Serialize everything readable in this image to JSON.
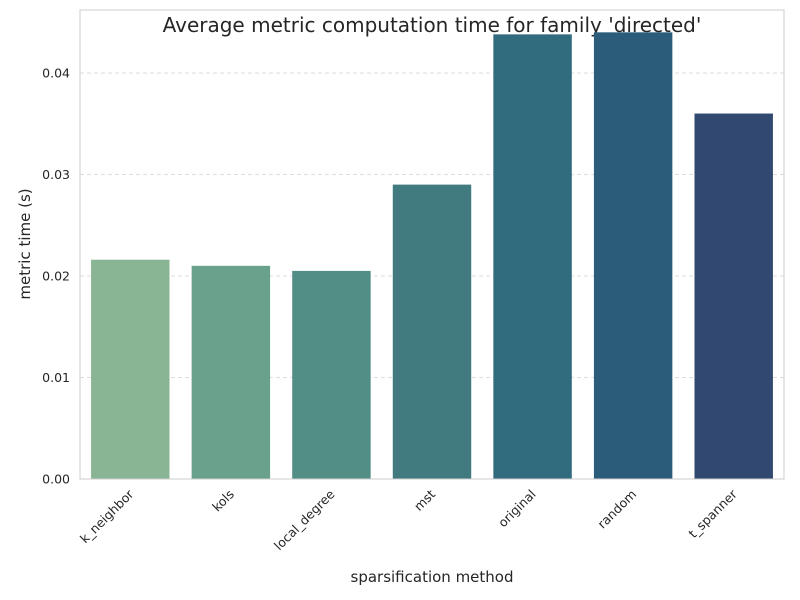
{
  "chart_data": {
    "type": "bar",
    "title": "Average metric computation time for family 'directed'",
    "xlabel": "sparsification method",
    "ylabel": "metric time (s)",
    "categories": [
      "k_neighbor",
      "kols",
      "local_degree",
      "mst",
      "original",
      "random",
      "t_spanner"
    ],
    "values": [
      0.0216,
      0.021,
      0.0205,
      0.029,
      0.0438,
      0.044,
      0.036
    ],
    "colors": [
      "#8ab594",
      "#6aa18d",
      "#528e86",
      "#417b7f",
      "#306b7e",
      "#2b5d7b",
      "#314970"
    ],
    "ylim": [
      0,
      0.0462
    ],
    "yticks": [
      "0.00",
      "0.01",
      "0.02",
      "0.03",
      "0.04"
    ],
    "ytick_values": [
      0,
      0.01,
      0.02,
      0.03,
      0.04
    ],
    "grid": "y-dashed",
    "legend": "none"
  }
}
